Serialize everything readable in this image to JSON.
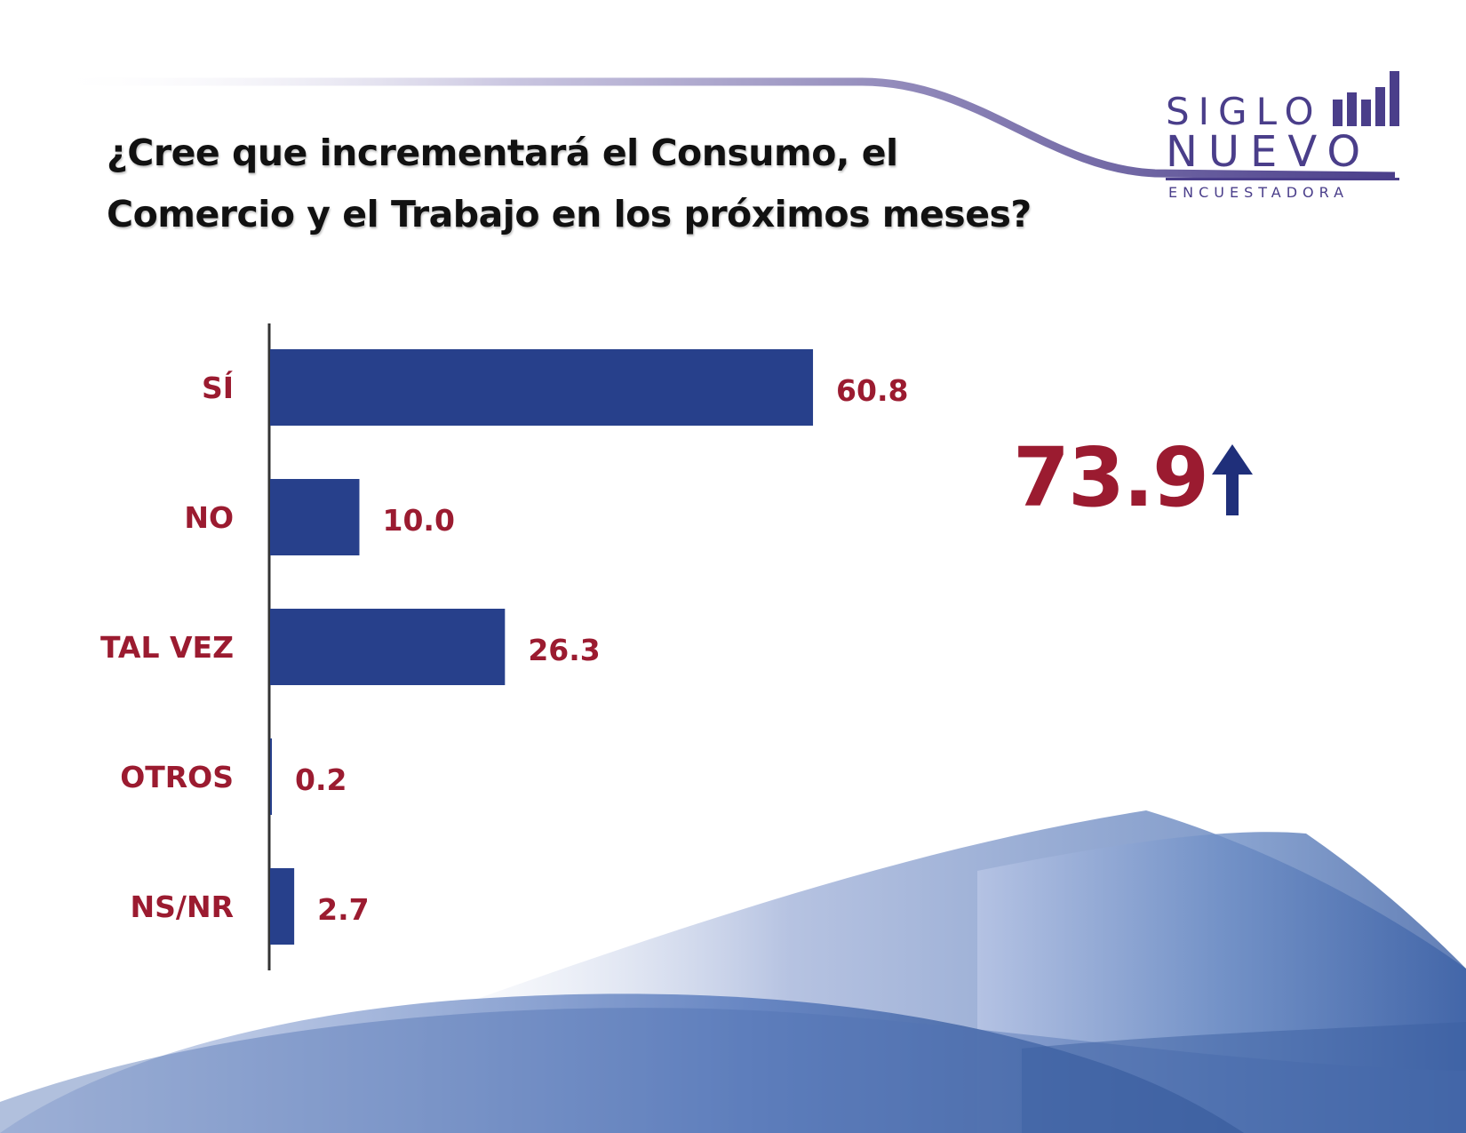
{
  "question": {
    "line1": "¿Cree que incrementará el Consumo, el",
    "line2": "Comercio y el Trabajo en los próximos meses?"
  },
  "logo": {
    "siglo": "SIGLO",
    "nuevo": "NUEVO",
    "tagline": "ENCUESTADORA",
    "color": "#4a3e8a"
  },
  "highlight": {
    "value": "73.9",
    "icon": "arrow-up-icon",
    "value_color": "#9b1b30",
    "arrow_color": "#1f2f7a"
  },
  "colors": {
    "bar": "#27408b",
    "label": "#9b1b30",
    "axis": "#333333"
  },
  "chart_data": {
    "type": "bar",
    "orientation": "horizontal",
    "categories": [
      "SÍ",
      "NO",
      "TAL VEZ",
      "OTROS",
      "NS/NR"
    ],
    "values": [
      60.8,
      10.0,
      26.3,
      0.2,
      2.7
    ],
    "value_labels": [
      "60.8",
      "10.0",
      "26.3",
      "0.2",
      "2.7"
    ],
    "xlim": [
      0,
      100
    ],
    "grid": false,
    "legend": false
  }
}
